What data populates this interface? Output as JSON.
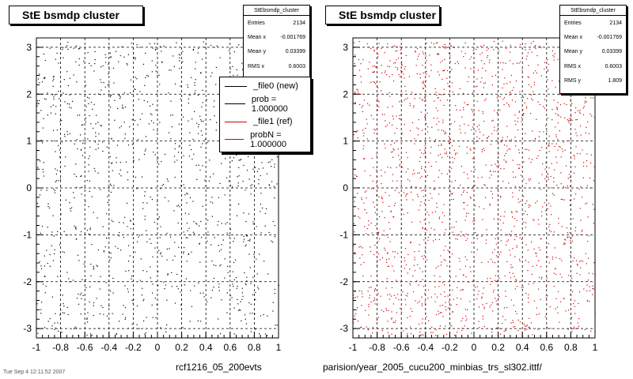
{
  "chart_data": [
    {
      "type": "scatter",
      "title": "StE bsmdp cluster",
      "series": [
        {
          "name": "_file0 (new)",
          "color": "#000000"
        }
      ],
      "xlim": [
        -1,
        1
      ],
      "ylim": [
        -3.2,
        3.2
      ],
      "x_ticks": [
        "-1",
        "-0.8",
        "-0.6",
        "-0.4",
        "-0.2",
        "0",
        "0.2",
        "0.4",
        "0.6",
        "0.8",
        "1"
      ],
      "y_ticks": [
        "-3",
        "-2",
        "-1",
        "0",
        "1",
        "2",
        "3"
      ],
      "grid": true,
      "stats": {
        "title": "StEbsmdp_cluster",
        "rows": [
          [
            "Entries",
            "2134"
          ],
          [
            "Mean x",
            "-0.001769"
          ],
          [
            "Mean y",
            "0.03399"
          ],
          [
            "RMS x",
            "0.6003"
          ]
        ]
      },
      "legend": {
        "entries": [
          {
            "label": "_file0 (new)",
            "color": "#000000"
          },
          {
            "label": "prob = 1.000000",
            "color": "#000000"
          },
          {
            "label": "_file1 (ref)",
            "color": "#cc0000"
          },
          {
            "label": "probN = 1.000000",
            "color": "#cc0000"
          }
        ]
      },
      "footer": "rcf1216_05_200evts"
    },
    {
      "type": "scatter",
      "title": "StE bsmdp cluster",
      "series": [
        {
          "name": "_file1 (ref)",
          "color": "#cc0000"
        }
      ],
      "xlim": [
        -1,
        1
      ],
      "ylim": [
        -3.2,
        3.2
      ],
      "x_ticks": [
        "-1",
        "-0.8",
        "-0.6",
        "-0.4",
        "-0.2",
        "0",
        "0.2",
        "0.4",
        "0.6",
        "0.8",
        "1"
      ],
      "y_ticks": [
        "-3",
        "-2",
        "-1",
        "0",
        "1",
        "2",
        "3"
      ],
      "grid": true,
      "stats": {
        "title": "StEbsmdp_cluster",
        "rows": [
          [
            "Entries",
            "2134"
          ],
          [
            "Mean x",
            "-0.001769"
          ],
          [
            "Mean y",
            "0.03399"
          ],
          [
            "RMS x",
            "0.6003"
          ],
          [
            "RMS y",
            "1.809"
          ]
        ]
      },
      "footer": "parision/year_2005_cucu200_minbias_trs_sl302.ittf/"
    }
  ],
  "tiny_footer": "Tue Sep 4 12:11:52 2007"
}
